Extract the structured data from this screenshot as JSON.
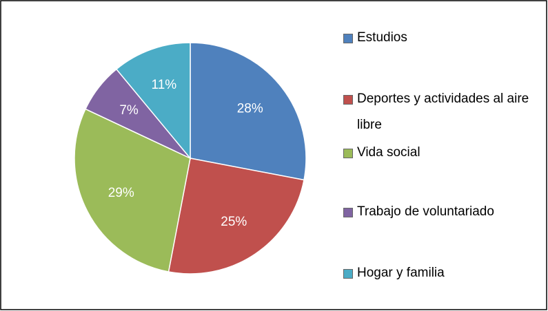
{
  "chart_data": {
    "type": "pie",
    "categories": [
      "Estudios",
      "Deportes y actividades al aire libre",
      "Vida social",
      "Trabajo de voluntariado",
      "Hogar y familia"
    ],
    "values": [
      28,
      25,
      29,
      7,
      11
    ],
    "value_labels": [
      "28%",
      "25%",
      "29%",
      "7%",
      "11%"
    ],
    "colors": [
      "#4f81bd",
      "#c0504d",
      "#9bbb59",
      "#8064a2",
      "#4bacc6"
    ],
    "legend": "right"
  }
}
